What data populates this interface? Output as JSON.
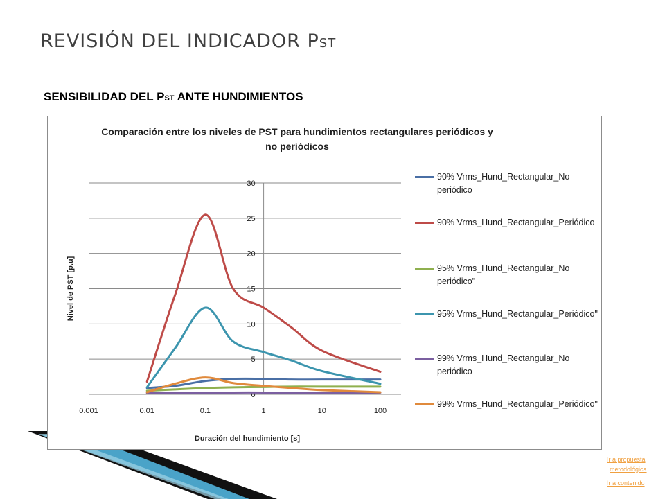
{
  "header": {
    "title_main": "REVISIÓN DEL INDICADOR P",
    "title_sub": "ST"
  },
  "section": {
    "subtitle_main": "SENSIBILIDAD  DEL P",
    "subtitle_sub": "ST",
    "subtitle_rest": " ANTE HUNDIMIENTOS"
  },
  "colors": {
    "deco_dark": "#111111",
    "deco_blue": "#4aa3c8"
  },
  "chart_data": {
    "type": "line",
    "title_line1": "Comparación entre los niveles de PST para hundimientos rectangulares periódicos y",
    "title_line2": "no periódicos",
    "xlabel": "Duración del hundimiento [s]",
    "ylabel": "Nivel de PST [p.u]",
    "xscale": "log",
    "xlim": [
      0.001,
      100
    ],
    "ylim": [
      0,
      30
    ],
    "x_ticks": [
      "0.001",
      "0.01",
      "0.1",
      "1",
      "10",
      "100"
    ],
    "y_ticks": [
      "0",
      "5",
      "10",
      "15",
      "20",
      "25",
      "30"
    ],
    "grid": "horizontal",
    "legend_position": "right",
    "series": [
      {
        "name": "90% Vrms_Hund_Rectangular_No periódico",
        "color": "#4a6fa5",
        "x": [
          0.01,
          0.03,
          0.1,
          0.3,
          1,
          3,
          10,
          100
        ],
        "values": [
          0.9,
          1.2,
          1.9,
          2.2,
          2.2,
          2.1,
          2.1,
          2.1
        ]
      },
      {
        "name": "90% Vrms_Hund_Rectangular_Periódico",
        "color": "#be4b48",
        "x": [
          0.01,
          0.03,
          0.1,
          0.3,
          1,
          3,
          10,
          100
        ],
        "values": [
          1.8,
          14.0,
          25.5,
          15.0,
          12.3,
          9.5,
          6.2,
          3.2
        ]
      },
      {
        "name": "95% Vrms_Hund_Rectangular_No periódico\"",
        "color": "#8fb04f",
        "x": [
          0.01,
          0.03,
          0.1,
          0.3,
          1,
          3,
          10,
          100
        ],
        "values": [
          0.5,
          0.7,
          0.9,
          1.0,
          1.05,
          1.1,
          1.1,
          1.1
        ]
      },
      {
        "name": "95% Vrms_Hund_Rectangular_Periódico\"",
        "color": "#3c95ae",
        "x": [
          0.01,
          0.03,
          0.1,
          0.3,
          1,
          3,
          10,
          100
        ],
        "values": [
          1.0,
          6.5,
          12.3,
          7.5,
          6.0,
          4.8,
          3.3,
          1.5
        ]
      },
      {
        "name": "99% Vrms_Hund_Rectangular_No periódico",
        "color": "#7b5fa0",
        "x": [
          0.01,
          0.03,
          0.1,
          0.3,
          1,
          3,
          10,
          100
        ],
        "values": [
          0.2,
          0.2,
          0.2,
          0.25,
          0.25,
          0.25,
          0.25,
          0.25
        ]
      },
      {
        "name": "99% Vrms_Hund_Rectangular_Periódico\"",
        "color": "#e08a3c",
        "x": [
          0.01,
          0.03,
          0.1,
          0.3,
          1,
          3,
          10,
          100
        ],
        "values": [
          0.3,
          1.5,
          2.4,
          1.6,
          1.2,
          0.9,
          0.6,
          0.3
        ]
      }
    ]
  },
  "legend_text": [
    "90% Vrms_Hund_Rectangular_No periódico",
    "90% Vrms_Hund_Rectangular_Periódico",
    "95% Vrms_Hund_Rectangular_No periódico\"",
    "95% Vrms_Hund_Rectangular_Periódico\"",
    "99% Vrms_Hund_Rectangular_No periódico",
    "99% Vrms_Hund_Rectangular_Periódico\""
  ],
  "links": {
    "propuesta_1": "Ir a propuesta",
    "propuesta_2": "metodológica",
    "contenido": "Ir a contenido"
  }
}
